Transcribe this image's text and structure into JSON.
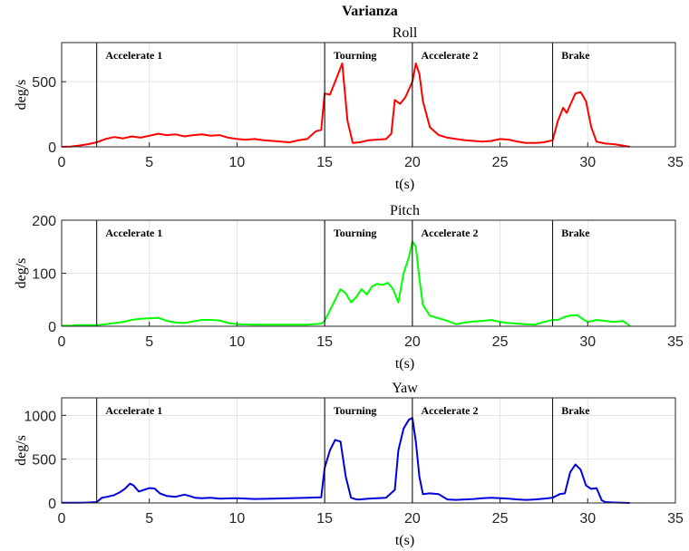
{
  "suptitle": "Varianza",
  "chart_data": [
    {
      "type": "line",
      "title": "Roll",
      "xlabel": "t(s)",
      "ylabel": "deg/s",
      "xlim": [
        0,
        35
      ],
      "ylim": [
        0,
        800
      ],
      "xticks": [
        0,
        5,
        10,
        15,
        20,
        25,
        30,
        35
      ],
      "yticks": [
        0,
        500
      ],
      "grid": true,
      "color": "#ff0000",
      "phase_lines": [
        2,
        15,
        20,
        28
      ],
      "phase_labels": [
        {
          "x": 2.5,
          "text": "Accelerate 1"
        },
        {
          "x": 15.5,
          "text": "Tourning"
        },
        {
          "x": 20.5,
          "text": "Accelerate 2"
        },
        {
          "x": 28.5,
          "text": "Brake"
        }
      ],
      "series": [
        {
          "x": [
            0,
            0.5,
            1,
            1.5,
            2,
            2.5,
            3,
            3.5,
            4,
            4.5,
            5,
            5.5,
            6,
            6.5,
            7,
            7.5,
            8,
            8.5,
            9,
            9.5,
            10,
            10.5,
            11,
            11.5,
            12,
            12.5,
            13,
            13.5,
            14,
            14.5,
            14.8,
            15,
            15.3,
            15.6,
            16,
            16.3,
            16.6,
            17,
            17.5,
            18,
            18.5,
            18.8,
            19,
            19.3,
            19.6,
            20,
            20.2,
            20.4,
            20.6,
            21,
            21.5,
            22,
            22.5,
            23,
            23.5,
            24,
            24.5,
            25,
            25.5,
            26,
            26.5,
            27,
            27.5,
            28,
            28.3,
            28.6,
            28.8,
            29,
            29.3,
            29.6,
            29.9,
            30.2,
            30.5,
            31,
            31.5,
            32,
            32.4
          ],
          "y": [
            0,
            2,
            10,
            20,
            35,
            60,
            75,
            65,
            80,
            70,
            85,
            100,
            90,
            95,
            80,
            90,
            95,
            85,
            90,
            70,
            60,
            55,
            60,
            50,
            45,
            40,
            35,
            50,
            60,
            120,
            130,
            410,
            400,
            500,
            640,
            200,
            30,
            35,
            50,
            55,
            60,
            100,
            360,
            330,
            380,
            500,
            640,
            560,
            350,
            150,
            90,
            70,
            60,
            50,
            45,
            40,
            45,
            60,
            55,
            40,
            30,
            30,
            35,
            50,
            200,
            300,
            260,
            320,
            410,
            420,
            350,
            150,
            40,
            25,
            20,
            10,
            0
          ]
        }
      ]
    },
    {
      "type": "line",
      "title": "Pitch",
      "xlabel": "t(s)",
      "ylabel": "deg/s",
      "xlim": [
        0,
        35
      ],
      "ylim": [
        0,
        200
      ],
      "xticks": [
        0,
        5,
        10,
        15,
        20,
        25,
        30,
        35
      ],
      "yticks": [
        0,
        100,
        200
      ],
      "grid": true,
      "color": "#00ff00",
      "phase_lines": [
        2,
        15,
        20,
        28
      ],
      "phase_labels": [
        {
          "x": 2.5,
          "text": "Accelerate 1"
        },
        {
          "x": 15.5,
          "text": "Tourning"
        },
        {
          "x": 20.5,
          "text": "Accelerate 2"
        },
        {
          "x": 28.5,
          "text": "Brake"
        }
      ],
      "series": [
        {
          "x": [
            0,
            0.5,
            1,
            1.5,
            2,
            2.5,
            3,
            3.5,
            4,
            4.5,
            5,
            5.5,
            6,
            6.5,
            7,
            7.5,
            8,
            8.5,
            9,
            9.5,
            10,
            11,
            12,
            13,
            14,
            14.8,
            15,
            15.3,
            15.6,
            15.9,
            16.2,
            16.5,
            16.8,
            17.1,
            17.4,
            17.7,
            18,
            18.3,
            18.6,
            18.9,
            19.2,
            19.5,
            19.8,
            20,
            20.2,
            20.4,
            20.6,
            21,
            21.5,
            22,
            22.5,
            23,
            23.5,
            24,
            24.5,
            25,
            25.5,
            26,
            26.5,
            27,
            27.5,
            28,
            28.3,
            28.7,
            29,
            29.4,
            29.7,
            30,
            30.5,
            31,
            31.5,
            32,
            32.4
          ],
          "y": [
            1,
            1,
            2,
            2,
            2,
            4,
            6,
            8,
            12,
            14,
            15,
            16,
            10,
            7,
            6,
            9,
            12,
            12,
            11,
            6,
            4,
            3,
            3,
            3,
            3,
            5,
            10,
            30,
            50,
            70,
            62,
            45,
            55,
            70,
            60,
            75,
            80,
            78,
            82,
            70,
            45,
            100,
            130,
            160,
            150,
            90,
            40,
            20,
            15,
            10,
            4,
            7,
            9,
            10,
            12,
            8,
            6,
            5,
            4,
            3,
            8,
            12,
            12,
            18,
            20,
            21,
            14,
            8,
            12,
            10,
            8,
            10,
            1
          ]
        }
      ]
    },
    {
      "type": "line",
      "title": "Yaw",
      "xlabel": "t(s)",
      "ylabel": "deg/s",
      "xlim": [
        0,
        35
      ],
      "ylim": [
        0,
        1200
      ],
      "xticks": [
        0,
        5,
        10,
        15,
        20,
        25,
        30,
        35
      ],
      "yticks": [
        0,
        500,
        1000
      ],
      "grid": true,
      "color": "#0000dd",
      "phase_lines": [
        2,
        15,
        20,
        28
      ],
      "phase_labels": [
        {
          "x": 2.5,
          "text": "Accelerate 1"
        },
        {
          "x": 15.5,
          "text": "Tourning"
        },
        {
          "x": 20.5,
          "text": "Accelerate 2"
        },
        {
          "x": 28.5,
          "text": "Brake"
        }
      ],
      "series": [
        {
          "x": [
            0,
            0.5,
            1,
            1.5,
            2,
            2.3,
            2.6,
            3,
            3.3,
            3.6,
            3.9,
            4.1,
            4.4,
            4.7,
            5,
            5.3,
            5.6,
            6,
            6.5,
            7,
            7.3,
            7.6,
            8,
            8.5,
            9,
            10,
            11,
            12,
            13,
            14,
            14.8,
            15,
            15.3,
            15.6,
            15.9,
            16.2,
            16.5,
            16.8,
            17,
            17.5,
            18,
            18.5,
            19,
            19.2,
            19.5,
            19.8,
            20,
            20.2,
            20.4,
            20.6,
            21,
            21.5,
            22,
            22.5,
            23,
            23.5,
            24,
            24.5,
            25,
            25.5,
            26,
            26.5,
            27,
            27.5,
            28,
            28.4,
            28.7,
            29,
            29.3,
            29.6,
            29.9,
            30.2,
            30.5,
            30.8,
            31,
            31.5,
            32,
            32.4
          ],
          "y": [
            2,
            2,
            3,
            5,
            10,
            60,
            70,
            90,
            120,
            160,
            220,
            200,
            130,
            150,
            170,
            165,
            110,
            80,
            70,
            95,
            80,
            60,
            55,
            60,
            50,
            55,
            45,
            50,
            55,
            60,
            65,
            400,
            600,
            720,
            700,
            300,
            60,
            40,
            40,
            50,
            55,
            60,
            150,
            600,
            850,
            950,
            970,
            700,
            300,
            100,
            110,
            100,
            40,
            35,
            40,
            45,
            55,
            60,
            55,
            50,
            40,
            35,
            40,
            50,
            60,
            100,
            110,
            350,
            440,
            380,
            200,
            160,
            170,
            30,
            10,
            5,
            2,
            0
          ]
        }
      ]
    }
  ]
}
